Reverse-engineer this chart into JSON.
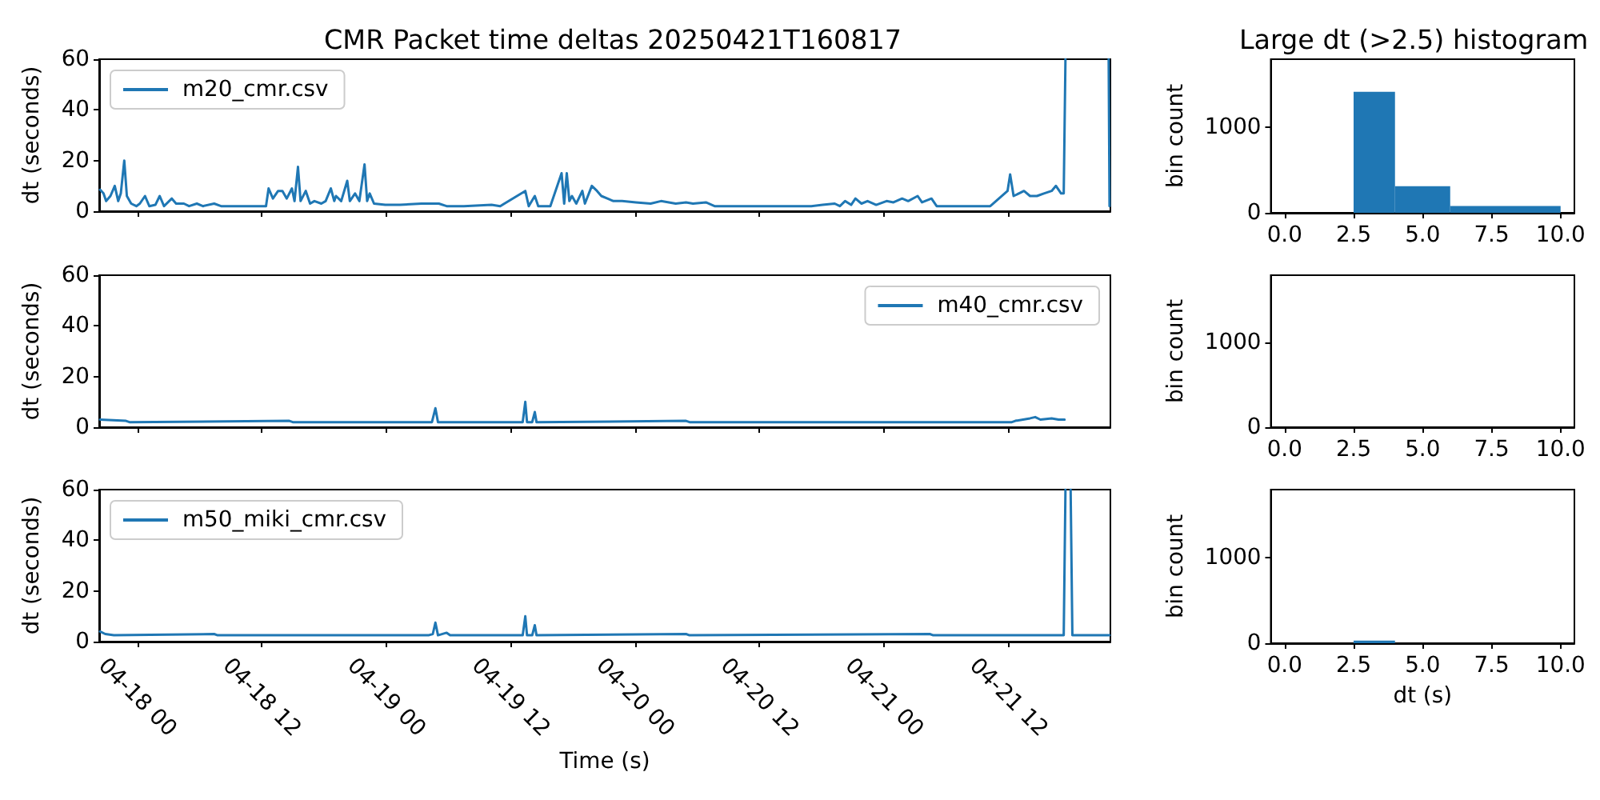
{
  "chart_data": [
    {
      "type": "line",
      "title": "CMR Packet time deltas 20250421T160817",
      "ylabel": "dt (seconds)",
      "legend": "top left",
      "tick_labels": "y",
      "grid": false,
      "xlim": [
        "--04-17T20:20",
        "--04-21T21:50"
      ],
      "xticks": [
        {
          "value": "--04-18T00:00",
          "label": "04-18 00"
        },
        {
          "value": "--04-18T12:00",
          "label": "04-18 12"
        },
        {
          "value": "--04-19T00:00",
          "label": "04-19 00"
        },
        {
          "value": "--04-19T12:00",
          "label": "04-19 12"
        },
        {
          "value": "--04-20T00:00",
          "label": "04-20 00"
        },
        {
          "value": "--04-20T12:00",
          "label": "04-20 12"
        },
        {
          "value": "--04-21T00:00",
          "label": "04-21 00"
        },
        {
          "value": "--04-21T12:00",
          "label": "04-21 12"
        }
      ],
      "ylim": [
        0,
        60
      ],
      "yticks": [
        0,
        20,
        40,
        60
      ],
      "series": [
        {
          "name": "m20_cmr.csv",
          "color": "#1f77b4",
          "x": [
            "--04-17T20:25",
            "--04-17T20:45",
            "--04-17T21:00",
            "--04-17T21:25",
            "--04-17T21:50",
            "--04-17T22:10",
            "--04-17T22:25",
            "--04-17T22:45",
            "--04-17T23:00",
            "--04-17T23:25",
            "--04-17T23:55",
            "--04-18T00:15",
            "--04-18T00:45",
            "--04-18T01:10",
            "--04-18T01:45",
            "--04-18T02:10",
            "--04-18T02:35",
            "--04-18T03:20",
            "--04-18T03:45",
            "--04-18T04:30",
            "--04-18T05:00",
            "--04-18T05:45",
            "--04-18T06:20",
            "--04-18T07:25",
            "--04-18T08:05",
            "--04-18T10:10",
            "--04-18T11:30",
            "--04-18T12:25",
            "--04-18T12:40",
            "--04-18T13:05",
            "--04-18T13:35",
            "--04-18T14:00",
            "--04-18T14:25",
            "--04-18T14:55",
            "--04-18T15:10",
            "--04-18T15:30",
            "--04-18T15:45",
            "--04-18T16:15",
            "--04-18T16:40",
            "--04-18T17:05",
            "--04-18T17:45",
            "--04-18T18:10",
            "--04-18T18:40",
            "--04-18T19:00",
            "--04-18T19:10",
            "--04-18T19:40",
            "--04-18T20:15",
            "--04-18T20:30",
            "--04-18T21:00",
            "--04-18T21:25",
            "--04-18T21:55",
            "--04-18T22:10",
            "--04-18T22:25",
            "--04-18T22:50",
            "--04-18T23:55",
            "--04-19T01:20",
            "--04-19T03:25",
            "--04-19T05:05",
            "--04-19T05:50",
            "--04-19T07:30",
            "--04-19T10:10",
            "--04-19T11:00",
            "--04-19T13:25",
            "--04-19T13:45",
            "--04-19T14:20",
            "--04-19T14:40",
            "--04-19T15:50",
            "--04-19T16:55",
            "--04-19T17:10",
            "--04-19T17:25",
            "--04-19T17:40",
            "--04-19T17:55",
            "--04-19T18:20",
            "--04-19T18:55",
            "--04-19T19:10",
            "--04-19T19:50",
            "--04-19T20:20",
            "--04-19T20:45",
            "--04-19T21:20",
            "--04-19T21:55",
            "--04-19T22:45",
            "--04-20T00:05",
            "--04-20T01:30",
            "--04-20T02:30",
            "--04-20T03:55",
            "--04-20T04:55",
            "--04-20T05:35",
            "--04-20T06:50",
            "--04-20T07:40",
            "--04-20T11:10",
            "--04-20T14:35",
            "--04-20T17:00",
            "--04-20T18:05",
            "--04-20T19:15",
            "--04-20T19:45",
            "--04-20T20:15",
            "--04-20T20:50",
            "--04-20T21:15",
            "--04-20T21:50",
            "--04-20T22:25",
            "--04-20T23:15",
            "--04-21T00:15",
            "--04-21T00:55",
            "--04-21T01:45",
            "--04-21T02:20",
            "--04-21T03:15",
            "--04-21T03:40",
            "--04-21T04:35",
            "--04-21T05:05",
            "--04-21T07:10",
            "--04-21T10:15",
            "--04-21T11:55",
            "--04-21T12:10",
            "--04-21T12:30",
            "--04-21T13:00",
            "--04-21T13:30",
            "--04-21T14:05",
            "--04-21T14:45",
            "--04-21T15:25",
            "--04-21T16:10",
            "--04-21T16:35",
            "--04-21T17:05",
            "--04-21T17:20",
            "--04-21T17:30",
            "--04-21T19:35",
            "--04-21T21:40",
            "--04-21T21:45"
          ],
          "values": [
            8.5,
            7,
            4,
            6,
            10,
            4,
            7,
            20,
            6,
            3,
            2,
            3,
            6,
            2,
            2.5,
            6,
            2,
            5,
            3,
            3,
            2,
            3,
            2,
            3,
            2,
            2,
            2,
            2,
            9,
            5,
            8,
            8,
            5,
            9,
            4,
            17.5,
            4,
            8,
            3,
            4,
            3,
            4,
            9,
            4,
            6,
            4,
            12,
            4,
            7,
            4,
            18.5,
            4,
            7,
            3,
            2.5,
            2.5,
            3,
            3,
            2,
            2,
            2.5,
            2,
            8,
            2,
            6,
            2,
            2,
            15,
            3,
            15,
            4,
            6,
            3,
            8,
            3,
            10,
            8,
            6,
            5,
            4,
            4,
            3.5,
            3,
            4,
            3,
            3.5,
            3,
            3.5,
            2,
            2,
            2,
            2,
            2.5,
            3,
            2,
            4,
            2.5,
            5,
            3,
            4,
            2.5,
            4,
            3.5,
            5,
            4,
            6,
            3.5,
            5,
            2,
            2,
            2,
            8,
            14.5,
            6,
            7,
            8,
            6,
            6,
            7,
            8,
            10,
            7,
            7,
            60,
            null,
            60,
            2
          ]
        }
      ]
    },
    {
      "type": "histogram",
      "title": "Large dt (>2.5) histogram",
      "ylabel": "bin count",
      "grid": false,
      "bins": [
        2.5,
        4,
        6,
        10
      ],
      "values": [
        1410,
        310,
        80
      ],
      "color": "#1f77b4",
      "xlim": [
        -0.5,
        10.5
      ],
      "xticks": [
        {
          "value": 0,
          "label": "0.0"
        },
        {
          "value": 2.5,
          "label": "2.5"
        },
        {
          "value": 5,
          "label": "5.0"
        },
        {
          "value": 7.5,
          "label": "7.5"
        },
        {
          "value": 10,
          "label": "10.0"
        }
      ],
      "ylim": [
        0,
        1790
      ],
      "yticks": [
        0,
        1000
      ]
    },
    {
      "type": "line",
      "ylabel": "dt (seconds)",
      "legend": "top right",
      "tick_labels": "y",
      "grid": false,
      "xlim": [
        "--04-17T20:20",
        "--04-21T21:50"
      ],
      "xticks": [
        {
          "value": "--04-18T00:00",
          "label": "04-18 00"
        },
        {
          "value": "--04-18T12:00",
          "label": "04-18 12"
        },
        {
          "value": "--04-19T00:00",
          "label": "04-19 00"
        },
        {
          "value": "--04-19T12:00",
          "label": "04-19 12"
        },
        {
          "value": "--04-20T00:00",
          "label": "04-20 00"
        },
        {
          "value": "--04-20T12:00",
          "label": "04-20 12"
        },
        {
          "value": "--04-21T00:00",
          "label": "04-21 00"
        },
        {
          "value": "--04-21T12:00",
          "label": "04-21 12"
        }
      ],
      "ylim": [
        0,
        60
      ],
      "yticks": [
        0,
        20,
        40,
        60
      ],
      "series": [
        {
          "name": "m40_cmr.csv",
          "color": "#1f77b4",
          "x": [
            "--04-17T20:25",
            "--04-17T22:55",
            "--04-17T23:15",
            "--04-18T14:40",
            "--04-18T15:00",
            "--04-19T04:25",
            "--04-19T04:45",
            "--04-19T05:00",
            "--04-19T13:10",
            "--04-19T13:25",
            "--04-19T13:35",
            "--04-19T14:05",
            "--04-19T14:20",
            "--04-19T14:30",
            "--04-20T04:55",
            "--04-20T05:15",
            "--04-21T12:20",
            "--04-21T12:40",
            "--04-21T14:05",
            "--04-21T14:35",
            "--04-21T15:05",
            "--04-21T16:10",
            "--04-21T16:50",
            "--04-21T17:25"
          ],
          "values": [
            3,
            2.5,
            2,
            2.5,
            2,
            2,
            7.5,
            2,
            2,
            10,
            2,
            2,
            6,
            2,
            2.5,
            2,
            2,
            2.5,
            3.5,
            4,
            3,
            3.5,
            3,
            3
          ]
        }
      ]
    },
    {
      "type": "histogram",
      "ylabel": "bin count",
      "grid": false,
      "xlim": [
        -0.5,
        10.5
      ],
      "xticks": [
        {
          "value": 0,
          "label": "0.0"
        },
        {
          "value": 2.5,
          "label": "2.5"
        },
        {
          "value": 5,
          "label": "5.0"
        },
        {
          "value": 7.5,
          "label": "7.5"
        },
        {
          "value": 10,
          "label": "10.0"
        }
      ],
      "ylim": [
        0,
        1790
      ],
      "yticks": [
        0,
        1000
      ]
    },
    {
      "type": "line",
      "xlabel": "Time (s)",
      "ylabel": "dt (seconds)",
      "legend": "top left",
      "grid": false,
      "xlim": [
        "--04-17T20:20",
        "--04-21T21:50"
      ],
      "xticks": [
        {
          "value": "--04-18T00:00",
          "label": "04-18 00"
        },
        {
          "value": "--04-18T12:00",
          "label": "04-18 12"
        },
        {
          "value": "--04-19T00:00",
          "label": "04-19 00"
        },
        {
          "value": "--04-19T12:00",
          "label": "04-19 12"
        },
        {
          "value": "--04-20T00:00",
          "label": "04-20 00"
        },
        {
          "value": "--04-20T12:00",
          "label": "04-20 12"
        },
        {
          "value": "--04-21T00:00",
          "label": "04-21 00"
        },
        {
          "value": "--04-21T12:00",
          "label": "04-21 12"
        }
      ],
      "ylim": [
        0,
        60
      ],
      "yticks": [
        0,
        20,
        40,
        60
      ],
      "series": [
        {
          "name": "m50_miki_cmr.csv",
          "color": "#1f77b4",
          "x": [
            "--04-17T20:25",
            "--04-17T20:55",
            "--04-17T21:45",
            "--04-18T07:25",
            "--04-18T07:45",
            "--04-19T04:05",
            "--04-19T04:30",
            "--04-19T04:45",
            "--04-19T05:00",
            "--04-19T05:50",
            "--04-19T06:10",
            "--04-19T13:10",
            "--04-19T13:25",
            "--04-19T13:35",
            "--04-19T14:05",
            "--04-19T14:20",
            "--04-19T14:30",
            "--04-20T04:55",
            "--04-20T05:15",
            "--04-21T04:25",
            "--04-21T04:45",
            "--04-21T17:20",
            "--04-21T17:30",
            "--04-21T17:45",
            "--04-21T18:00",
            "--04-21T18:10",
            "--04-21T21:45"
          ],
          "values": [
            4,
            3,
            2.5,
            3,
            2.5,
            2.5,
            3,
            7.5,
            2.5,
            3.5,
            2.5,
            2.5,
            10,
            2.5,
            2.5,
            6.5,
            2.5,
            3,
            2.5,
            3,
            2.5,
            2.5,
            60,
            null,
            60,
            2.5,
            2.5
          ]
        }
      ]
    },
    {
      "type": "histogram",
      "xlabel": "dt (s)",
      "ylabel": "bin count",
      "grid": false,
      "bins": [
        2.5,
        4
      ],
      "values": [
        30
      ],
      "color": "#1f77b4",
      "xlim": [
        -0.5,
        10.5
      ],
      "xticks": [
        {
          "value": 0,
          "label": "0.0"
        },
        {
          "value": 2.5,
          "label": "2.5"
        },
        {
          "value": 5,
          "label": "5.0"
        },
        {
          "value": 7.5,
          "label": "7.5"
        },
        {
          "value": 10,
          "label": "10.0"
        }
      ],
      "ylim": [
        0,
        1790
      ],
      "yticks": [
        0,
        1000
      ]
    }
  ]
}
